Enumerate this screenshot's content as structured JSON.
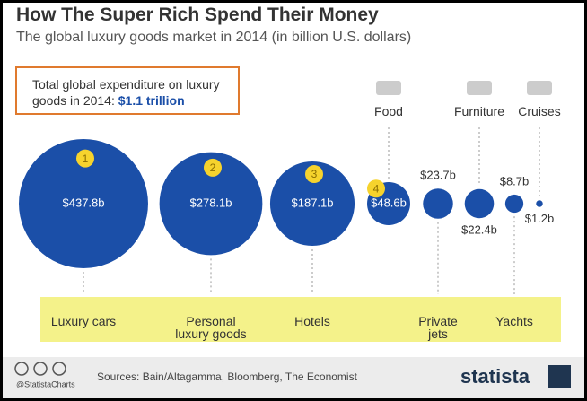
{
  "chart_data": {
    "type": "bubble",
    "title": "How The Super Rich Spend Their Money",
    "subtitle": "The global luxury goods market in 2014 (in billion U.S. dollars)",
    "callout": {
      "text": "Total global expenditure on luxury goods in 2014:",
      "value_label": "$1.1 trillion"
    },
    "categories": [
      "Luxury cars",
      "Personal\nluxury goods",
      "Hotels",
      "Food",
      "Private\njets",
      "Furniture",
      "Yachts",
      "Cruises"
    ],
    "values": [
      437.8,
      278.1,
      187.1,
      48.6,
      23.7,
      22.4,
      8.7,
      1.2
    ],
    "value_labels": [
      "$437.8b",
      "$278.1b",
      "$187.1b",
      "$48.6b",
      "$23.7b",
      "$22.4b",
      "$8.7b",
      "$1.2b"
    ],
    "label_position": [
      "below",
      "below",
      "below",
      "above",
      "below",
      "above",
      "below",
      "above"
    ],
    "value_label_position": [
      "inside",
      "inside",
      "inside",
      "inside",
      "above",
      "below",
      "above",
      "below"
    ],
    "ranks": [
      1,
      2,
      3,
      4
    ],
    "color": "#1b4fa8",
    "highlight_color": "#f4f28a",
    "footer": {
      "handle": "@StatistaCharts",
      "source": "Sources: Bain/Altagamma, Bloomberg, The Economist",
      "brand": "statista"
    }
  }
}
